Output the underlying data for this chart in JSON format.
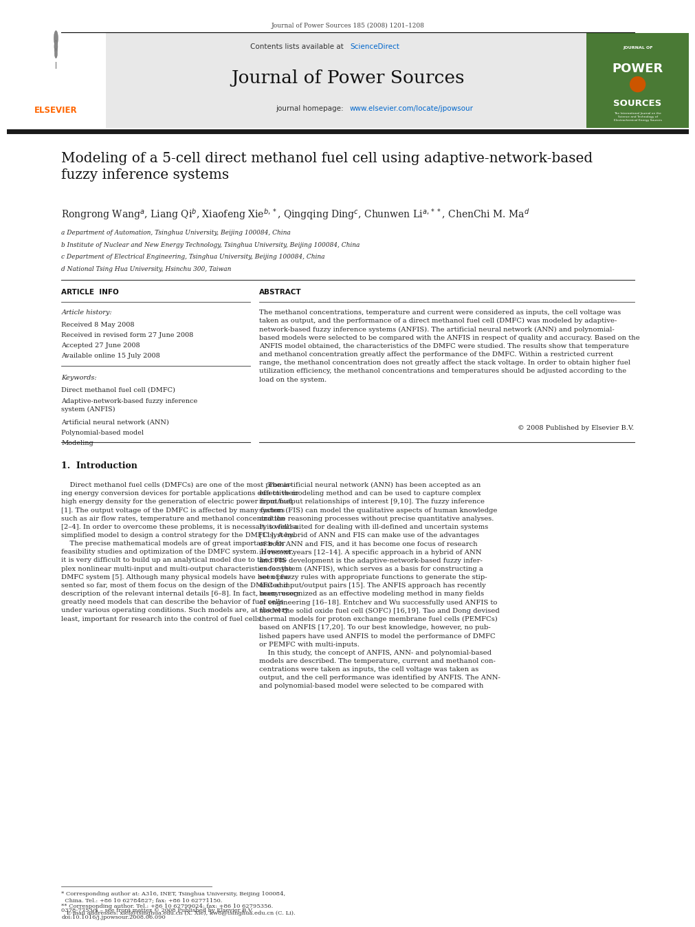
{
  "page_width": 9.92,
  "page_height": 13.23,
  "bg_color": "#ffffff",
  "header_journal_text": "Journal of Power Sources 185 (2008) 1201–1208",
  "header_line_color": "#000000",
  "journal_header_bg": "#e8e8e8",
  "journal_name": "Journal of Power Sources",
  "sciencedirect_color": "#0066cc",
  "homepage_url_color": "#0066cc",
  "elsevier_text_color": "#FF6600",
  "thick_line_color": "#1a1a1a",
  "paper_title": "Modeling of a 5-cell direct methanol fuel cell using adaptive-network-based\nfuzzy inference systems",
  "affil_a": "a Department of Automation, Tsinghua University, Beijing 100084, China",
  "affil_b": "b Institute of Nuclear and New Energy Technology, Tsinghua University, Beijing 100084, China",
  "affil_c": "c Department of Electrical Engineering, Tsinghua University, Beijing 100084, China",
  "affil_d": "d National Tsing Hua University, Hsinchu 300, Taiwan",
  "article_info_title": "ARTICLE  INFO",
  "abstract_title": "ABSTRACT",
  "article_history_label": "Article history:",
  "received": "Received 8 May 2008",
  "received_revised": "Received in revised form 27 June 2008",
  "accepted": "Accepted 27 June 2008",
  "available": "Available online 15 July 2008",
  "keywords_label": "Keywords:",
  "keyword1": "Direct methanol fuel cell (DMFC)",
  "keyword2": "Adaptive-network-based fuzzy inference\nsystem (ANFIS)",
  "keyword3": "Artificial neural network (ANN)",
  "keyword4": "Polynomial-based model",
  "keyword5": "Modeling",
  "abstract_text": "The methanol concentrations, temperature and current were considered as inputs, the cell voltage was\ntaken as output, and the performance of a direct methanol fuel cell (DMFC) was modeled by adaptive-\nnetwork-based fuzzy inference systems (ANFIS). The artificial neural network (ANN) and polynomial-\nbased models were selected to be compared with the ANFIS in respect of quality and accuracy. Based on the\nANFIS model obtained, the characteristics of the DMFC were studied. The results show that temperature\nand methanol concentration greatly affect the performance of the DMFC. Within a restricted current\nrange, the methanol concentration does not greatly affect the stack voltage. In order to obtain higher fuel\nutilization efficiency, the methanol concentrations and temperatures should be adjusted according to the\nload on the system.",
  "copyright_text": "© 2008 Published by Elsevier B.V.",
  "section1_title": "1.  Introduction",
  "intro_col1": "    Direct methanol fuel cells (DMFCs) are one of the most promis-\ning energy conversion devices for portable applications due to their\nhigh energy density for the generation of electric power from fuel\n[1]. The output voltage of the DMFC is affected by many factors\nsuch as air flow rates, temperature and methanol concentration\n[2–4]. In order to overcome these problems, it is necessary to find a\nsimplified model to design a control strategy for the DMFC system.\n    The precise mathematical models are of great importance for\nfeasibility studies and optimization of the DMFC system. However,\nit is very difficult to build up an analytical model due to the com-\nplex nonlinear multi-input and multi-output characteristics for the\nDMFC system [5]. Although many physical models have been pre-\nsented so far, most of them focus on the design of the DMFC and\ndescription of the relevant internal details [6–8]. In fact, many users\ngreatly need models that can describe the behavior of fuel cells\nunder various operating conditions. Such models are, at the very\nleast, important for research into the control of fuel cells.",
  "intro_col2": "    The artificial neural network (ANN) has been accepted as an\neffective modeling method and can be used to capture complex\ninput/output relationships of interest [9,10]. The fuzzy inference\nsystem (FIS) can model the qualitative aspects of human knowledge\nand the reasoning processes without precise quantitative analyses.\nIt is well suited for dealing with ill-defined and uncertain systems\n[11]. A hybrid of ANN and FIS can make use of the advantages\nof both ANN and FIS, and it has become one focus of research\nin recent years [12–14]. A specific approach in a hybrid of ANN\nand FIS development is the adaptive-network-based fuzzy infer-\nence system (ANFIS), which serves as a basis for constructing a\nset of fuzzy rules with appropriate functions to generate the stip-\nulated input/output pairs [15]. The ANFIS approach has recently\nbeen recognized as an effective modeling method in many fields\nof engineering [16–18]. Entchev and Wu successfully used ANFIS to\nmodel the solid oxide fuel cell (SOFC) [16,19]. Tao and Dong devised\nthermal models for proton exchange membrane fuel cells (PEMFCs)\nbased on ANFIS [17,20]. To our best knowledge, however, no pub-\nlished papers have used ANFIS to model the performance of DMFC\nor PEMFC with multi-inputs.\n    In this study, the concept of ANFIS, ANN- and polynomial-based\nmodels are described. The temperature, current and methanol con-\ncentrations were taken as inputs, the cell voltage was taken as\noutput, and the cell performance was identified by ANFIS. The ANN-\nand polynomial-based model were selected to be compared with",
  "footnote1": "* Corresponding author at: A316, INET, Tsinghua University, Beijing 100084,\n  China. Tel.: +86 10 62784827; fax: +86 10 62771150.",
  "footnote2": "** Corresponding author. Tel.: +86 10 62799024; fax: +86 10 62795356.\n   E-mail addresses: xief@tsinghua.edu.cn (X. Xie), kw8@tsinghua.edu.cn (C. Li).",
  "bottom_text": "0378-7753/$ – see front matter © 2008 Published by Elsevier B.V.\ndoi:10.1016/j.jpowsour.2008.06.090"
}
